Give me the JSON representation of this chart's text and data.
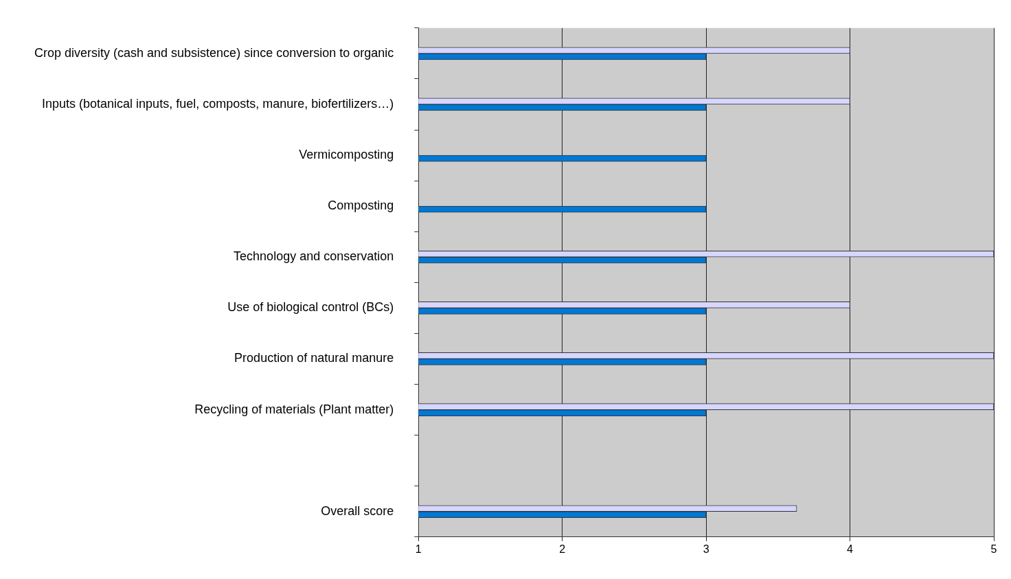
{
  "chart_data": {
    "type": "bar",
    "orientation": "horizontal",
    "categories": [
      "Crop diversity (cash and subsistence) since conversion to organic",
      "Inputs (botanical inputs, fuel, composts, manure, biofertilizers…)",
      "Vermicomposting",
      "Composting",
      "Technology and conservation",
      "Use of biological control (BCs)",
      "Production of natural manure",
      "Recycling of materials (Plant matter)",
      null,
      "Overall score"
    ],
    "series": [
      {
        "color": "#d6d6ff",
        "values": [
          4,
          4,
          null,
          null,
          5,
          4,
          5,
          5,
          null,
          3.63
        ]
      },
      {
        "color": "#0078d4",
        "values": [
          3,
          3,
          3,
          3,
          3,
          3,
          3,
          3,
          null,
          3
        ]
      }
    ],
    "xlim": [
      1,
      5
    ],
    "xticks": [
      1,
      2,
      3,
      4,
      5
    ],
    "grid": "x",
    "legend": false
  }
}
